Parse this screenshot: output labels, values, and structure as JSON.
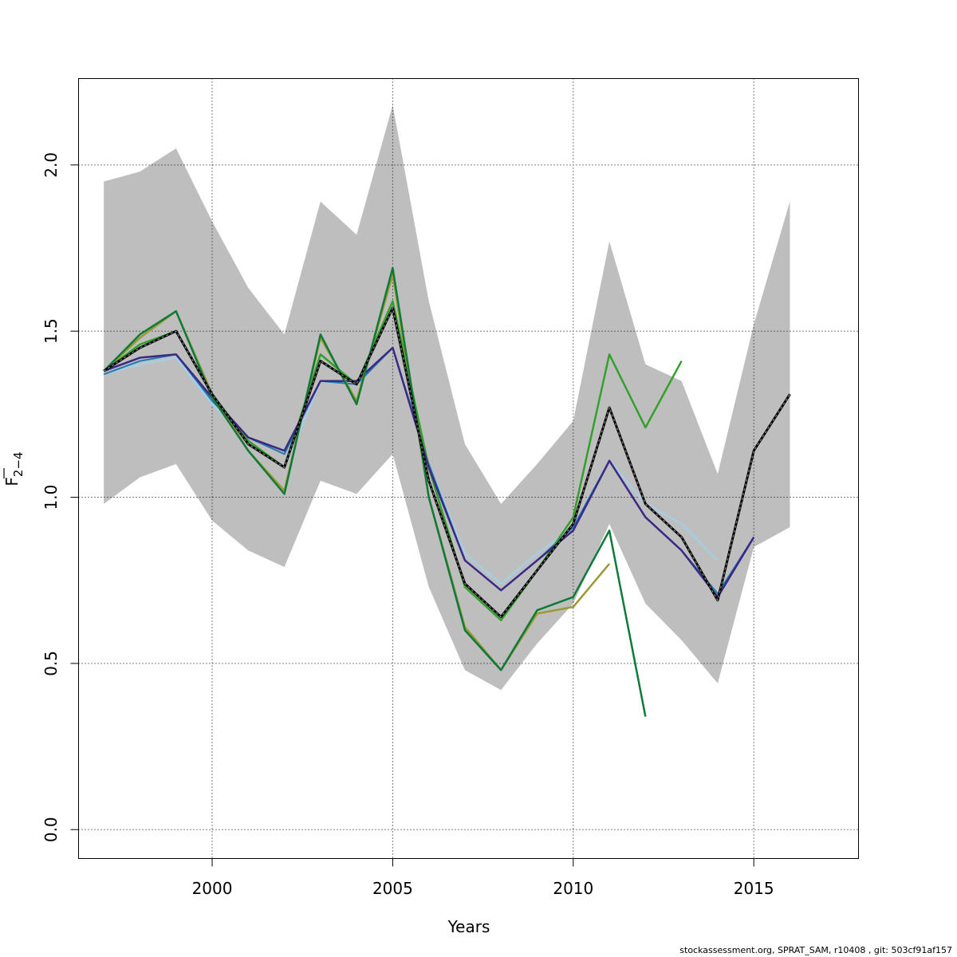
{
  "footer_text": "stockassessment.org, SPRAT_SAM, r10408 , git: 503cf91af157",
  "chart_data": {
    "type": "line",
    "xlabel": "Years",
    "ylabel_main": "F",
    "ylabel_sub": "2−4",
    "xlim": [
      1996.3,
      2017.9
    ],
    "ylim": [
      -0.087,
      2.26
    ],
    "x_ticks": [
      2000,
      2005,
      2010,
      2015
    ],
    "y_ticks": [
      0.0,
      0.5,
      1.0,
      1.5,
      2.0
    ],
    "y_tick_labels": [
      "0.0",
      "0.5",
      "1.0",
      "1.5",
      "2.0"
    ],
    "grid": true,
    "confidence_band": {
      "color": "#bebebe",
      "x": [
        1997,
        1998,
        1999,
        2000,
        2001,
        2002,
        2003,
        2004,
        2005,
        2006,
        2007,
        2008,
        2009,
        2010,
        2011,
        2012,
        2013,
        2014,
        2015,
        2016
      ],
      "upper": [
        1.95,
        1.98,
        2.05,
        1.83,
        1.63,
        1.49,
        1.89,
        1.79,
        2.18,
        1.59,
        1.16,
        0.98,
        1.1,
        1.23,
        1.77,
        1.4,
        1.35,
        1.07,
        1.52,
        1.89
      ],
      "lower": [
        0.98,
        1.06,
        1.1,
        0.93,
        0.84,
        0.79,
        1.05,
        1.01,
        1.13,
        0.73,
        0.48,
        0.42,
        0.56,
        0.68,
        0.92,
        0.68,
        0.57,
        0.44,
        0.85,
        0.91
      ]
    },
    "series": [
      {
        "color": "#a6cee3",
        "x": [
          1997,
          1998,
          1999,
          2000,
          2001,
          2002,
          2003,
          2004,
          2005,
          2006,
          2007,
          2008,
          2009,
          2010,
          2011,
          2012,
          2013,
          2014
        ],
        "values": [
          1.37,
          1.4,
          1.42,
          1.28,
          1.17,
          1.09,
          1.35,
          1.35,
          1.45,
          1.1,
          0.83,
          0.74,
          0.83,
          0.91,
          1.11,
          0.98,
          0.92,
          0.81
        ],
        "width": 2.5
      },
      {
        "color": "#1f78b4",
        "x": [
          1997,
          1998,
          1999,
          2000,
          2001,
          2002,
          2003,
          2004,
          2005,
          2006,
          2007,
          2008,
          2009,
          2010,
          2011,
          2012,
          2013,
          2014,
          2015
        ],
        "values": [
          1.37,
          1.41,
          1.43,
          1.29,
          1.18,
          1.13,
          1.35,
          1.34,
          1.45,
          1.1,
          0.81,
          0.72,
          0.81,
          0.91,
          1.11,
          0.94,
          0.84,
          0.71,
          0.88
        ],
        "width": 2
      },
      {
        "color": "#33a02c",
        "x": [
          1997,
          1998,
          1999,
          2000,
          2001,
          2002,
          2003,
          2004,
          2005,
          2006,
          2007,
          2008,
          2009,
          2010,
          2011,
          2012,
          2013
        ],
        "values": [
          1.38,
          1.46,
          1.5,
          1.31,
          1.17,
          1.09,
          1.43,
          1.34,
          1.59,
          1.09,
          0.73,
          0.63,
          0.78,
          0.94,
          1.43,
          1.21,
          1.41
        ],
        "width": 2.5
      },
      {
        "color": "#3b2a85",
        "x": [
          1997,
          1998,
          1999,
          2000,
          2001,
          2002,
          2003,
          2004,
          2005,
          2006,
          2007,
          2008,
          2009,
          2010,
          2011,
          2012,
          2013,
          2014,
          2015
        ],
        "values": [
          1.38,
          1.42,
          1.43,
          1.3,
          1.18,
          1.14,
          1.35,
          1.35,
          1.45,
          1.09,
          0.81,
          0.72,
          0.81,
          0.9,
          1.11,
          0.94,
          0.84,
          0.7,
          0.88
        ],
        "width": 2.5
      },
      {
        "color": "#9a9a30",
        "x": [
          1997,
          1998,
          1999,
          2000,
          2001,
          2002,
          2003,
          2004,
          2005,
          2006,
          2007,
          2008,
          2009,
          2010,
          2011
        ],
        "values": [
          1.38,
          1.48,
          1.56,
          1.31,
          1.14,
          1.02,
          1.48,
          1.29,
          1.67,
          1.0,
          0.61,
          0.48,
          0.65,
          0.67,
          0.8
        ],
        "width": 2.5
      },
      {
        "color": "#0e7a3a",
        "x": [
          1997,
          1998,
          1999,
          2000,
          2001,
          2002,
          2003,
          2004,
          2005,
          2006,
          2007,
          2008,
          2009,
          2010,
          2011,
          2012
        ],
        "values": [
          1.38,
          1.49,
          1.56,
          1.3,
          1.14,
          1.01,
          1.49,
          1.28,
          1.69,
          1.0,
          0.6,
          0.48,
          0.66,
          0.7,
          0.9,
          0.34
        ],
        "width": 2.5
      },
      {
        "color": "#222222",
        "x": [
          1997,
          1998,
          1999,
          2000,
          2001,
          2002,
          2003,
          2004,
          2005,
          2006,
          2007,
          2008,
          2009,
          2010,
          2011,
          2012,
          2013,
          2014,
          2015,
          2016
        ],
        "values": [
          1.38,
          1.45,
          1.5,
          1.31,
          1.16,
          1.09,
          1.41,
          1.34,
          1.57,
          1.05,
          0.74,
          0.64,
          0.78,
          0.92,
          1.27,
          0.98,
          0.88,
          0.69,
          1.14,
          1.31
        ],
        "width": 2.5,
        "dashed": true
      }
    ]
  }
}
